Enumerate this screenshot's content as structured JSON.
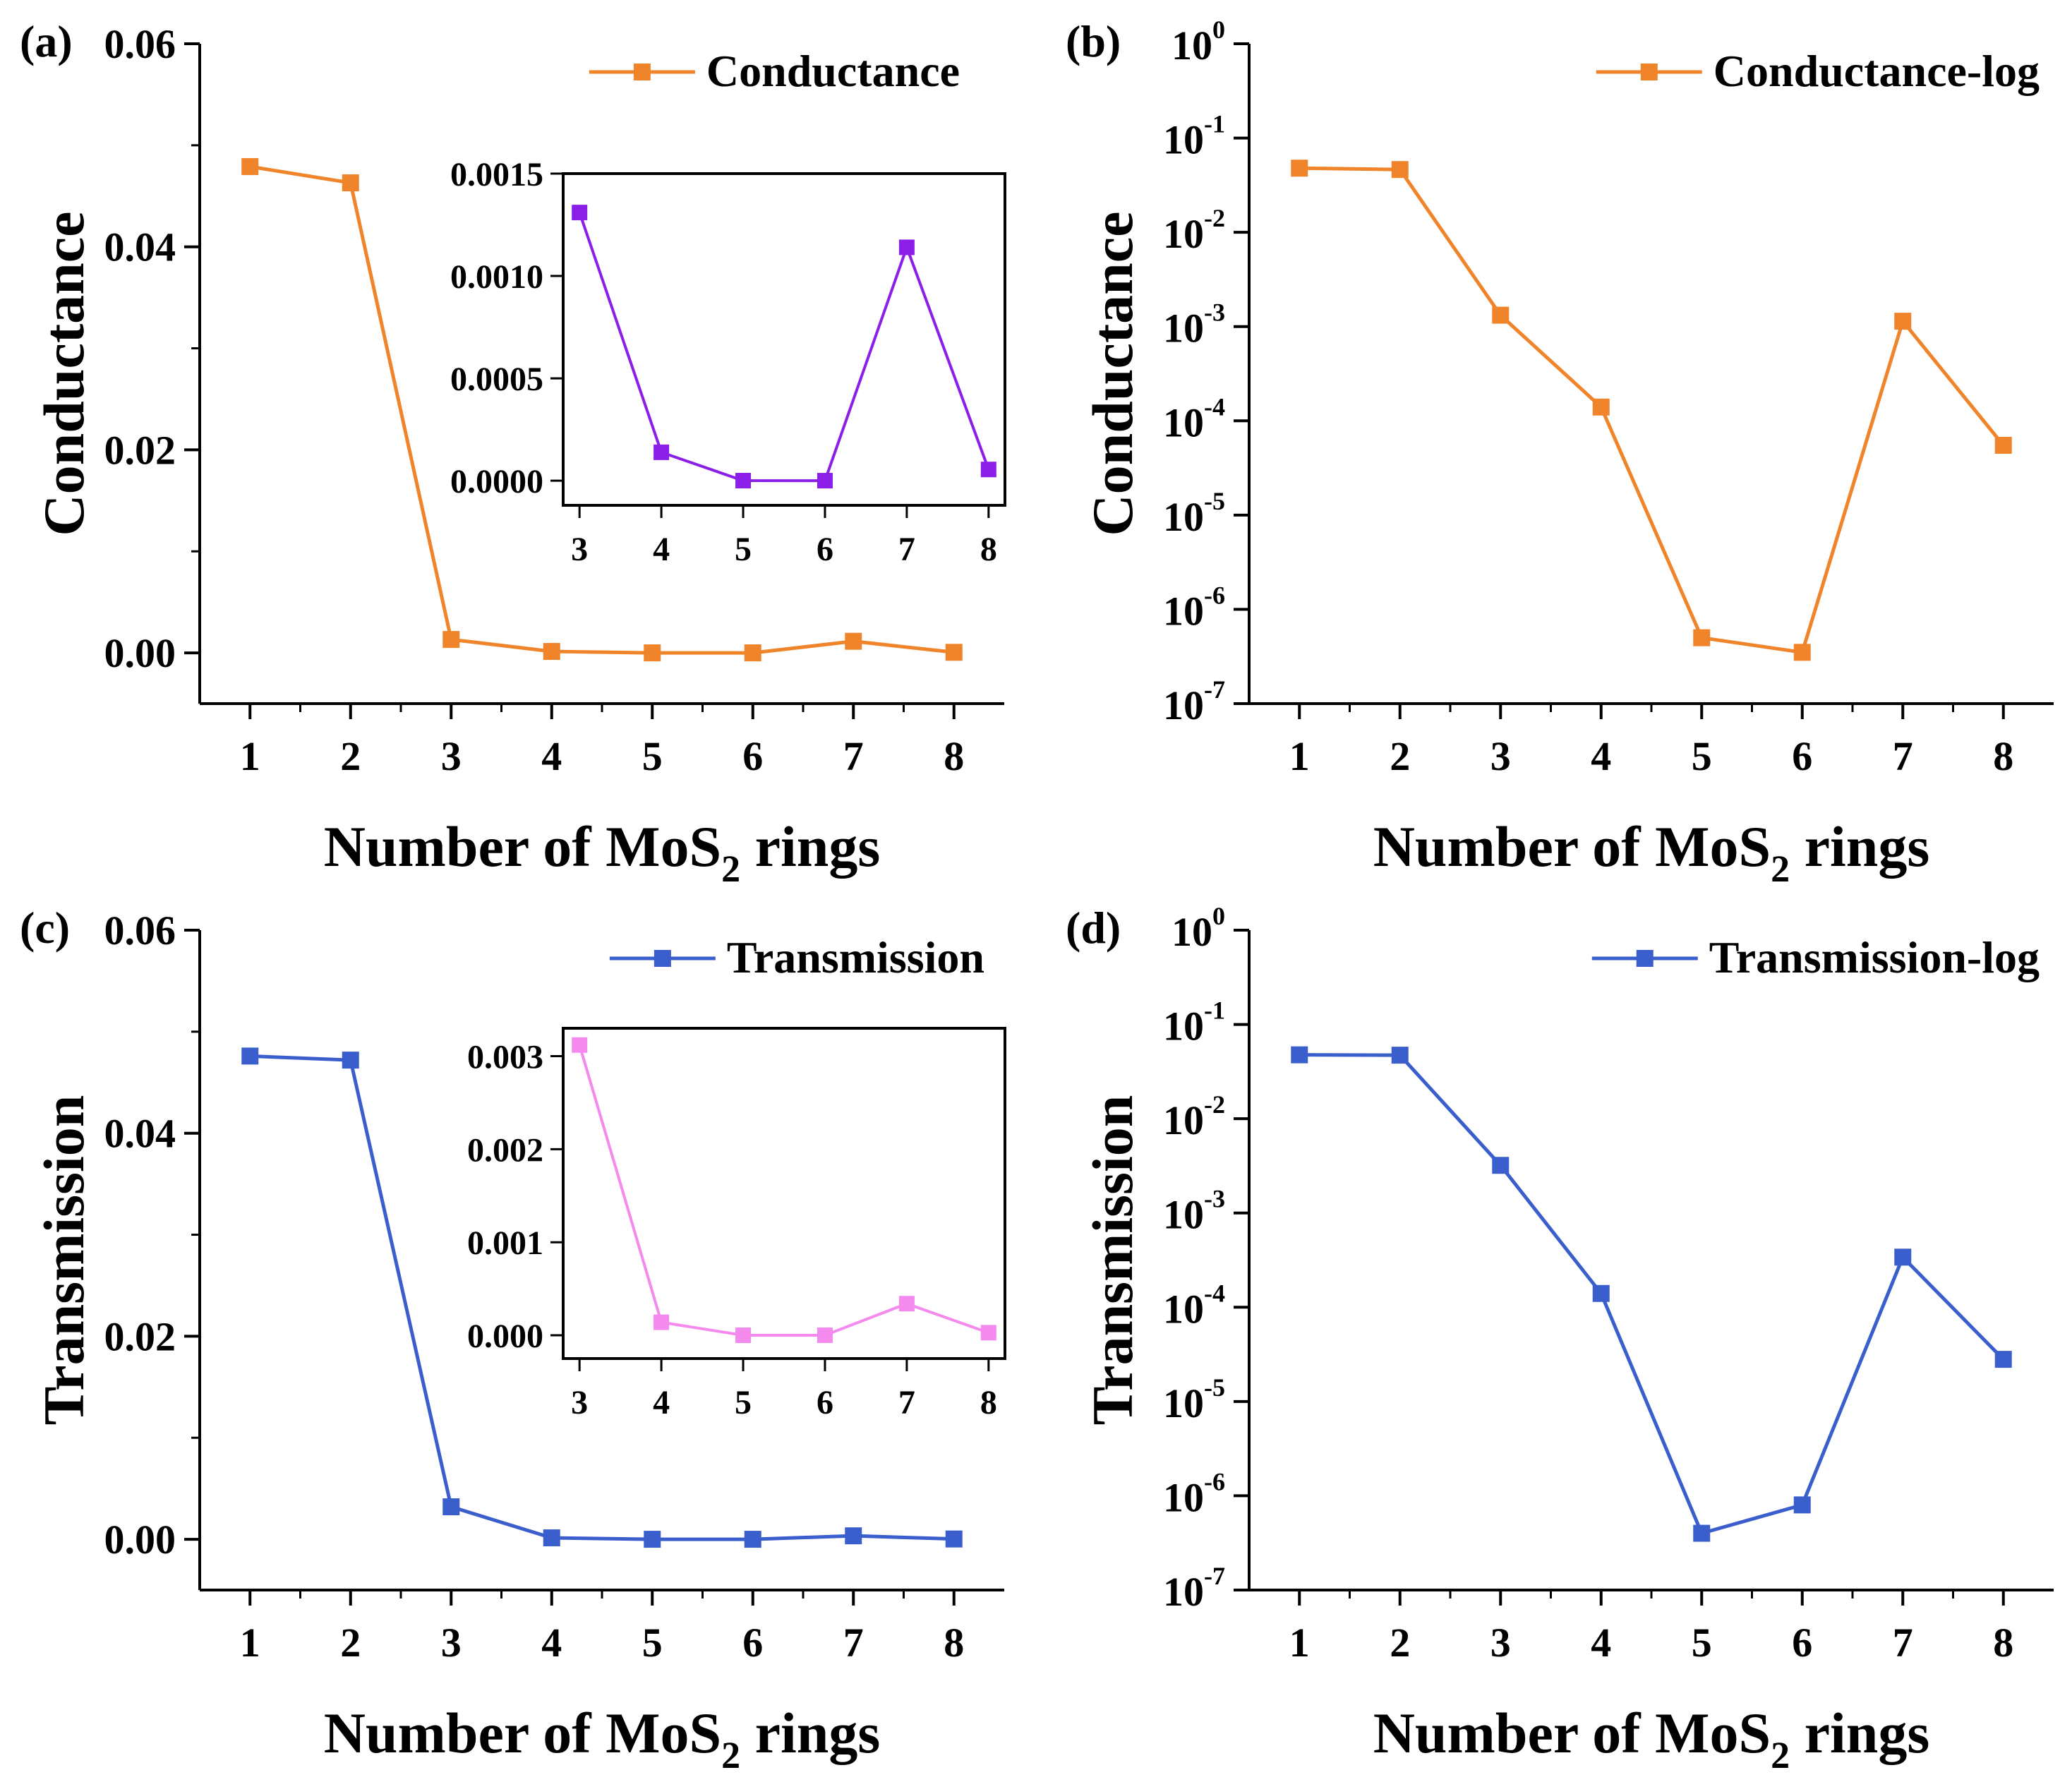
{
  "figure": {
    "panels": [
      "(a)",
      "(b)",
      "(c)",
      "(d)"
    ],
    "xlabel_main": "Number of MoS",
    "xlabel_sub": "2",
    "xlabel_tail": " rings"
  },
  "colors": {
    "conductance": "#F0842A",
    "transmission": "#3A5FCD",
    "inset_conductance": "#8B1FE8",
    "inset_transmission": "#F58AEE"
  },
  "chart_data": [
    {
      "id": "a",
      "type": "line",
      "panel_label": "(a)",
      "title": "",
      "xlabel": "Number of MoS2 rings",
      "ylabel": "Conductance",
      "yscale": "linear",
      "xlim": [
        0.5,
        8.5
      ],
      "ylim": [
        -0.005,
        0.06
      ],
      "xticks": [
        1,
        2,
        3,
        4,
        5,
        6,
        7,
        8
      ],
      "yticks": [
        0.0,
        0.02,
        0.04,
        0.06
      ],
      "ytick_labels": [
        "0.00",
        "0.02",
        "0.04",
        "0.06"
      ],
      "legend": "top-right",
      "series": [
        {
          "name": "Conductance",
          "color": "#F0842A",
          "x": [
            1,
            2,
            3,
            4,
            5,
            6,
            7,
            8
          ],
          "values": [
            0.0479,
            0.0463,
            0.00132,
            0.00014,
            5e-07,
            3.5e-07,
            0.00114,
            5.5e-05
          ]
        }
      ],
      "inset": {
        "type": "line",
        "xlim": [
          2.8,
          8.2
        ],
        "ylim": [
          -0.00012,
          0.0015
        ],
        "xticks": [
          3,
          4,
          5,
          6,
          7,
          8
        ],
        "yticks": [
          0.0,
          0.0005,
          0.001,
          0.0015
        ],
        "ytick_labels": [
          "0.0000",
          "0.0005",
          "0.0010",
          "0.0015"
        ],
        "series": [
          {
            "name": "",
            "color": "#8B1FE8",
            "x": [
              3,
              4,
              5,
              6,
              7,
              8
            ],
            "values": [
              0.00131,
              0.000139,
              5e-07,
              3.5e-07,
              0.00114,
              5.5e-05
            ]
          }
        ]
      }
    },
    {
      "id": "b",
      "type": "line",
      "panel_label": "(b)",
      "title": "",
      "xlabel": "Number of MoS2 rings",
      "ylabel": "Conductance",
      "yscale": "log",
      "xlim": [
        0.5,
        8.5
      ],
      "ylim_exp": [
        -7,
        0
      ],
      "xticks": [
        1,
        2,
        3,
        4,
        5,
        6,
        7,
        8
      ],
      "ytick_exps": [
        0,
        -1,
        -2,
        -3,
        -4,
        -5,
        -6,
        -7
      ],
      "ytick_base": "10",
      "legend": "top-right",
      "series": [
        {
          "name": "Conductance-log",
          "color": "#F0842A",
          "x": [
            1,
            2,
            3,
            4,
            5,
            6,
            7,
            8
          ],
          "values": [
            0.0479,
            0.0463,
            0.00132,
            0.00014,
            5e-07,
            3.5e-07,
            0.00114,
            5.5e-05
          ]
        }
      ]
    },
    {
      "id": "c",
      "type": "line",
      "panel_label": "(c)",
      "title": "",
      "xlabel": "Number of MoS2 rings",
      "ylabel": "Transmission",
      "yscale": "linear",
      "xlim": [
        0.5,
        8.5
      ],
      "ylim": [
        -0.005,
        0.06
      ],
      "xticks": [
        1,
        2,
        3,
        4,
        5,
        6,
        7,
        8
      ],
      "yticks": [
        0.0,
        0.02,
        0.04,
        0.06
      ],
      "ytick_labels": [
        "0.00",
        "0.02",
        "0.04",
        "0.06"
      ],
      "legend": "top-right",
      "series": [
        {
          "name": "Transmission",
          "color": "#3A5FCD",
          "x": [
            1,
            2,
            3,
            4,
            5,
            6,
            7,
            8
          ],
          "values": [
            0.0476,
            0.0472,
            0.0032,
            0.00014,
            4e-07,
            8e-07,
            0.00034,
            2.8e-05
          ]
        }
      ],
      "inset": {
        "type": "line",
        "xlim": [
          2.8,
          8.2
        ],
        "ylim": [
          -0.00025,
          0.0033
        ],
        "xticks": [
          3,
          4,
          5,
          6,
          7,
          8
        ],
        "yticks": [
          0.0,
          0.001,
          0.002,
          0.003
        ],
        "ytick_labels": [
          "0.000",
          "0.001",
          "0.002",
          "0.003"
        ],
        "series": [
          {
            "name": "",
            "color": "#F58AEE",
            "x": [
              3,
              4,
              5,
              6,
              7,
              8
            ],
            "values": [
              0.00312,
              0.00014,
              4e-07,
              8e-07,
              0.00034,
              2.8e-05
            ]
          }
        ]
      }
    },
    {
      "id": "d",
      "type": "line",
      "panel_label": "(d)",
      "title": "",
      "xlabel": "Number of MoS2 rings",
      "ylabel": "Transmission",
      "yscale": "log",
      "xlim": [
        0.5,
        8.5
      ],
      "ylim_exp": [
        -7,
        0
      ],
      "xticks": [
        1,
        2,
        3,
        4,
        5,
        6,
        7,
        8
      ],
      "ytick_exps": [
        0,
        -1,
        -2,
        -3,
        -4,
        -5,
        -6,
        -7
      ],
      "ytick_base": "10",
      "legend": "top-right",
      "series": [
        {
          "name": "Transmission-log",
          "color": "#3A5FCD",
          "x": [
            1,
            2,
            3,
            4,
            5,
            6,
            7,
            8
          ],
          "values": [
            0.0476,
            0.0472,
            0.0032,
            0.00014,
            4e-07,
            8e-07,
            0.00034,
            2.8e-05
          ]
        }
      ]
    }
  ]
}
